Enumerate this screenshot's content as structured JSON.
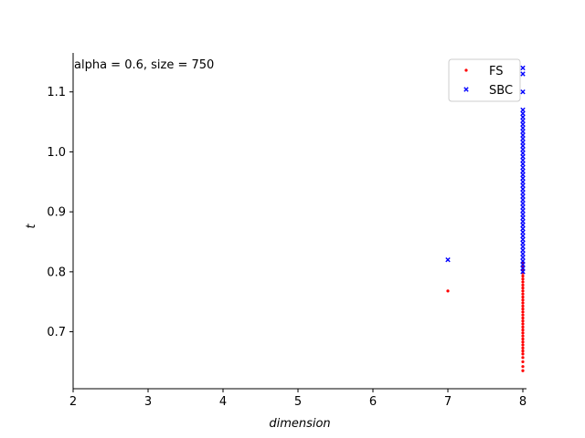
{
  "chart_data": {
    "type": "scatter",
    "annotation": "alpha = 0.6, size = 750",
    "xlabel": "dimension",
    "ylabel": "t",
    "xlim": [
      2,
      8
    ],
    "ylim": [
      0.605,
      1.165
    ],
    "xticks": [
      "2",
      "3",
      "4",
      "5",
      "6",
      "7",
      "8"
    ],
    "yticks": [
      "0.7",
      "0.8",
      "0.9",
      "1.0",
      "1.1"
    ],
    "grid": false,
    "legend_position": "top-right",
    "series": [
      {
        "name": "FS",
        "marker": "dot",
        "color": "#ff0000",
        "points": [
          [
            7,
            0.768
          ],
          [
            8,
            0.635
          ],
          [
            8,
            0.642
          ],
          [
            8,
            0.65
          ],
          [
            8,
            0.657
          ],
          [
            8,
            0.663
          ],
          [
            8,
            0.668
          ],
          [
            8,
            0.673
          ],
          [
            8,
            0.678
          ],
          [
            8,
            0.683
          ],
          [
            8,
            0.688
          ],
          [
            8,
            0.693
          ],
          [
            8,
            0.698
          ],
          [
            8,
            0.703
          ],
          [
            8,
            0.708
          ],
          [
            8,
            0.713
          ],
          [
            8,
            0.718
          ],
          [
            8,
            0.723
          ],
          [
            8,
            0.728
          ],
          [
            8,
            0.733
          ],
          [
            8,
            0.738
          ],
          [
            8,
            0.743
          ],
          [
            8,
            0.748
          ],
          [
            8,
            0.753
          ],
          [
            8,
            0.758
          ],
          [
            8,
            0.763
          ],
          [
            8,
            0.768
          ],
          [
            8,
            0.773
          ],
          [
            8,
            0.778
          ],
          [
            8,
            0.783
          ],
          [
            8,
            0.788
          ],
          [
            8,
            0.793
          ],
          [
            8,
            0.798
          ],
          [
            8,
            0.803
          ],
          [
            8,
            0.808
          ],
          [
            8,
            0.815
          ]
        ]
      },
      {
        "name": "SBC",
        "marker": "x",
        "color": "#0000ff",
        "points": [
          [
            7,
            0.82
          ],
          [
            8,
            0.8
          ],
          [
            8,
            0.806
          ],
          [
            8,
            0.812
          ],
          [
            8,
            0.818
          ],
          [
            8,
            0.824
          ],
          [
            8,
            0.83
          ],
          [
            8,
            0.836
          ],
          [
            8,
            0.842
          ],
          [
            8,
            0.848
          ],
          [
            8,
            0.854
          ],
          [
            8,
            0.86
          ],
          [
            8,
            0.866
          ],
          [
            8,
            0.872
          ],
          [
            8,
            0.878
          ],
          [
            8,
            0.884
          ],
          [
            8,
            0.89
          ],
          [
            8,
            0.896
          ],
          [
            8,
            0.902
          ],
          [
            8,
            0.908
          ],
          [
            8,
            0.914
          ],
          [
            8,
            0.92
          ],
          [
            8,
            0.926
          ],
          [
            8,
            0.932
          ],
          [
            8,
            0.938
          ],
          [
            8,
            0.944
          ],
          [
            8,
            0.95
          ],
          [
            8,
            0.956
          ],
          [
            8,
            0.962
          ],
          [
            8,
            0.968
          ],
          [
            8,
            0.974
          ],
          [
            8,
            0.98
          ],
          [
            8,
            0.986
          ],
          [
            8,
            0.992
          ],
          [
            8,
            0.998
          ],
          [
            8,
            1.004
          ],
          [
            8,
            1.01
          ],
          [
            8,
            1.016
          ],
          [
            8,
            1.022
          ],
          [
            8,
            1.028
          ],
          [
            8,
            1.034
          ],
          [
            8,
            1.04
          ],
          [
            8,
            1.046
          ],
          [
            8,
            1.052
          ],
          [
            8,
            1.058
          ],
          [
            8,
            1.064
          ],
          [
            8,
            1.07
          ],
          [
            8,
            1.1
          ],
          [
            8,
            1.13
          ],
          [
            8,
            1.14
          ]
        ]
      }
    ]
  }
}
